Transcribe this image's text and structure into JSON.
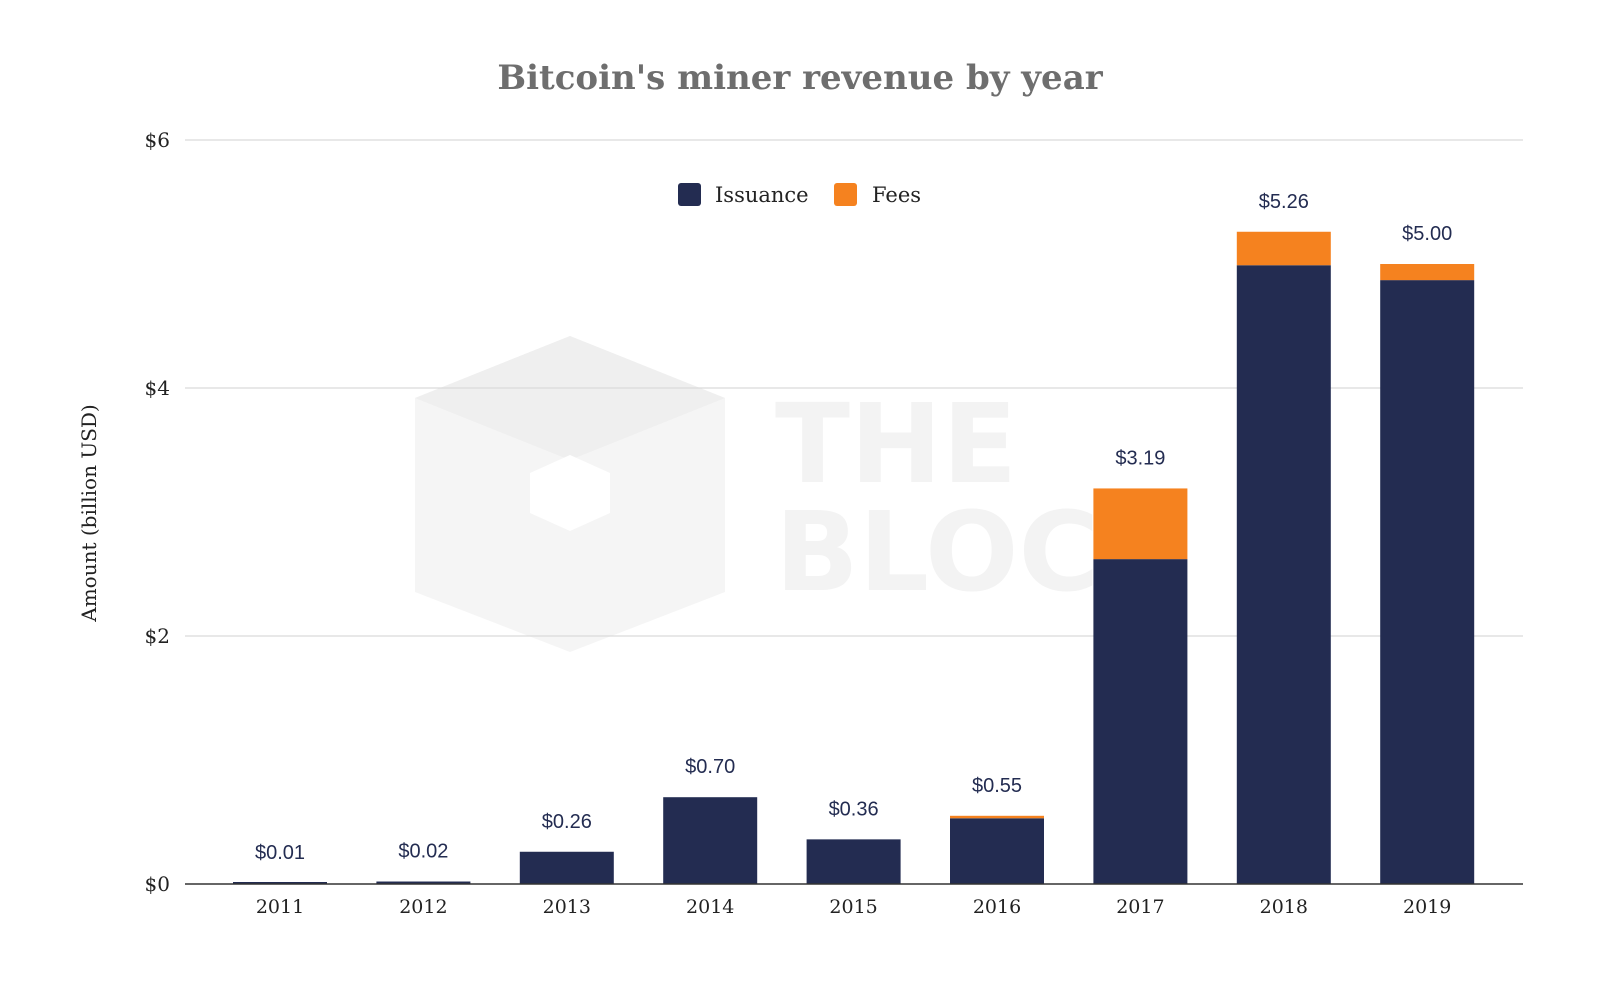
{
  "chart_data": {
    "type": "bar",
    "stacked": true,
    "title": "Bitcoin's miner revenue by year",
    "xlabel": "",
    "ylabel": "Amount (billion USD)",
    "ylim": [
      0,
      6
    ],
    "y_ticks": [
      {
        "value": 0,
        "label": "$0"
      },
      {
        "value": 2,
        "label": "$2"
      },
      {
        "value": 4,
        "label": "$4"
      },
      {
        "value": 6,
        "label": "$6"
      }
    ],
    "grid": true,
    "legend_position": "top-center",
    "categories": [
      "2011",
      "2012",
      "2013",
      "2014",
      "2015",
      "2016",
      "2017",
      "2018",
      "2019"
    ],
    "series": [
      {
        "name": "Issuance",
        "color": "#232c51",
        "values": [
          0.01,
          0.02,
          0.26,
          0.7,
          0.36,
          0.53,
          2.62,
          4.99,
          4.87
        ]
      },
      {
        "name": "Fees",
        "color": "#f5821f",
        "values": [
          0.0,
          0.0,
          0.0,
          0.0,
          0.0,
          0.02,
          0.57,
          0.27,
          0.13
        ]
      }
    ],
    "totals": [
      0.01,
      0.02,
      0.26,
      0.7,
      0.36,
      0.55,
      3.19,
      5.26,
      5.0
    ],
    "total_labels": [
      "$0.01",
      "$0.02",
      "$0.26",
      "$0.70",
      "$0.36",
      "$0.55",
      "$3.19",
      "$5.26",
      "$5.00"
    ],
    "label_color": "#232c51",
    "gridline_color": "#d9d9d9",
    "watermark": "THE BLOCK"
  }
}
